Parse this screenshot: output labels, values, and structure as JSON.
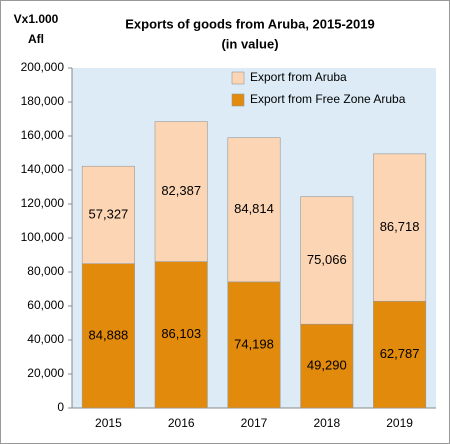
{
  "chart_data": {
    "type": "stacked_bar",
    "title": "Exports of goods from Aruba, 2015-2019",
    "subtitle": "(in value)",
    "ylabel": [
      "Vx1.000",
      "Afl"
    ],
    "categories": [
      "2015",
      "2016",
      "2017",
      "2018",
      "2019"
    ],
    "series": [
      {
        "name": "Export from Free Zone Aruba",
        "color": "#e28a0c",
        "values": [
          84888,
          86103,
          74198,
          49290,
          62787
        ],
        "value_labels": [
          "84,888",
          "86,103",
          "74,198",
          "49,290",
          "62,787"
        ]
      },
      {
        "name": "Export from Aruba",
        "color": "#fcd5b4",
        "values": [
          57327,
          82387,
          84814,
          75066,
          86718
        ],
        "value_labels": [
          "57,327",
          "82,387",
          "84,814",
          "75,066",
          "86,718"
        ]
      }
    ],
    "ylim": [
      0,
      200000
    ],
    "yticks": [
      0,
      {
        "value": 20000,
        "label": "20,000"
      },
      {
        "value": 40000,
        "label": "40,000"
      },
      {
        "value": 60000,
        "label": "60,000"
      },
      {
        "value": 80000,
        "label": "80,000"
      },
      {
        "value": 100000,
        "label": "100,000"
      },
      {
        "value": 120000,
        "label": "120,000"
      },
      {
        "value": 140000,
        "label": "140,000"
      },
      {
        "value": 160000,
        "label": "160,000"
      },
      {
        "value": 180000,
        "label": "180,000"
      },
      {
        "value": 200000,
        "label": "200,000"
      }
    ],
    "legend": "top-right",
    "plot_background": "#dcebf5"
  }
}
